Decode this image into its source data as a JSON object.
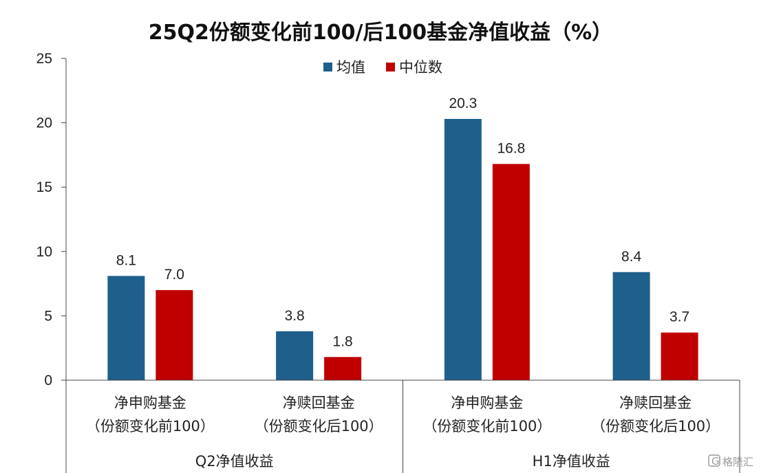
{
  "chart_data": {
    "type": "bar",
    "title": "25Q2份额变化前100/后100基金净值收益（%）",
    "ylim": [
      0,
      25
    ],
    "yticks": [
      0,
      5,
      10,
      15,
      20,
      25
    ],
    "grid": false,
    "legend_position": "top-center",
    "categories": [
      {
        "line1": "净申购基金",
        "line2": "（份额变化前100）"
      },
      {
        "line1": "净赎回基金",
        "line2": "（份额变化后100）"
      },
      {
        "line1": "净申购基金",
        "line2": "（份额变化前100）"
      },
      {
        "line1": "净赎回基金",
        "line2": "（份额变化后100）"
      }
    ],
    "groups": [
      {
        "label": "Q2净值收益",
        "categories": [
          0,
          1
        ]
      },
      {
        "label": "H1净值收益",
        "categories": [
          2,
          3
        ]
      }
    ],
    "series": [
      {
        "name": "均值",
        "color": "#1F5F8B",
        "values": [
          8.1,
          3.8,
          20.3,
          8.4
        ],
        "labels": [
          "8.1",
          "3.8",
          "20.3",
          "8.4"
        ]
      },
      {
        "name": "中位数",
        "color": "#C00000",
        "values": [
          7.0,
          1.8,
          16.8,
          3.7
        ],
        "labels": [
          "7.0",
          "1.8",
          "16.8",
          "3.7"
        ]
      }
    ]
  },
  "watermark": {
    "text": "格隆汇",
    "icon": "gelonghui-logo-icon"
  }
}
